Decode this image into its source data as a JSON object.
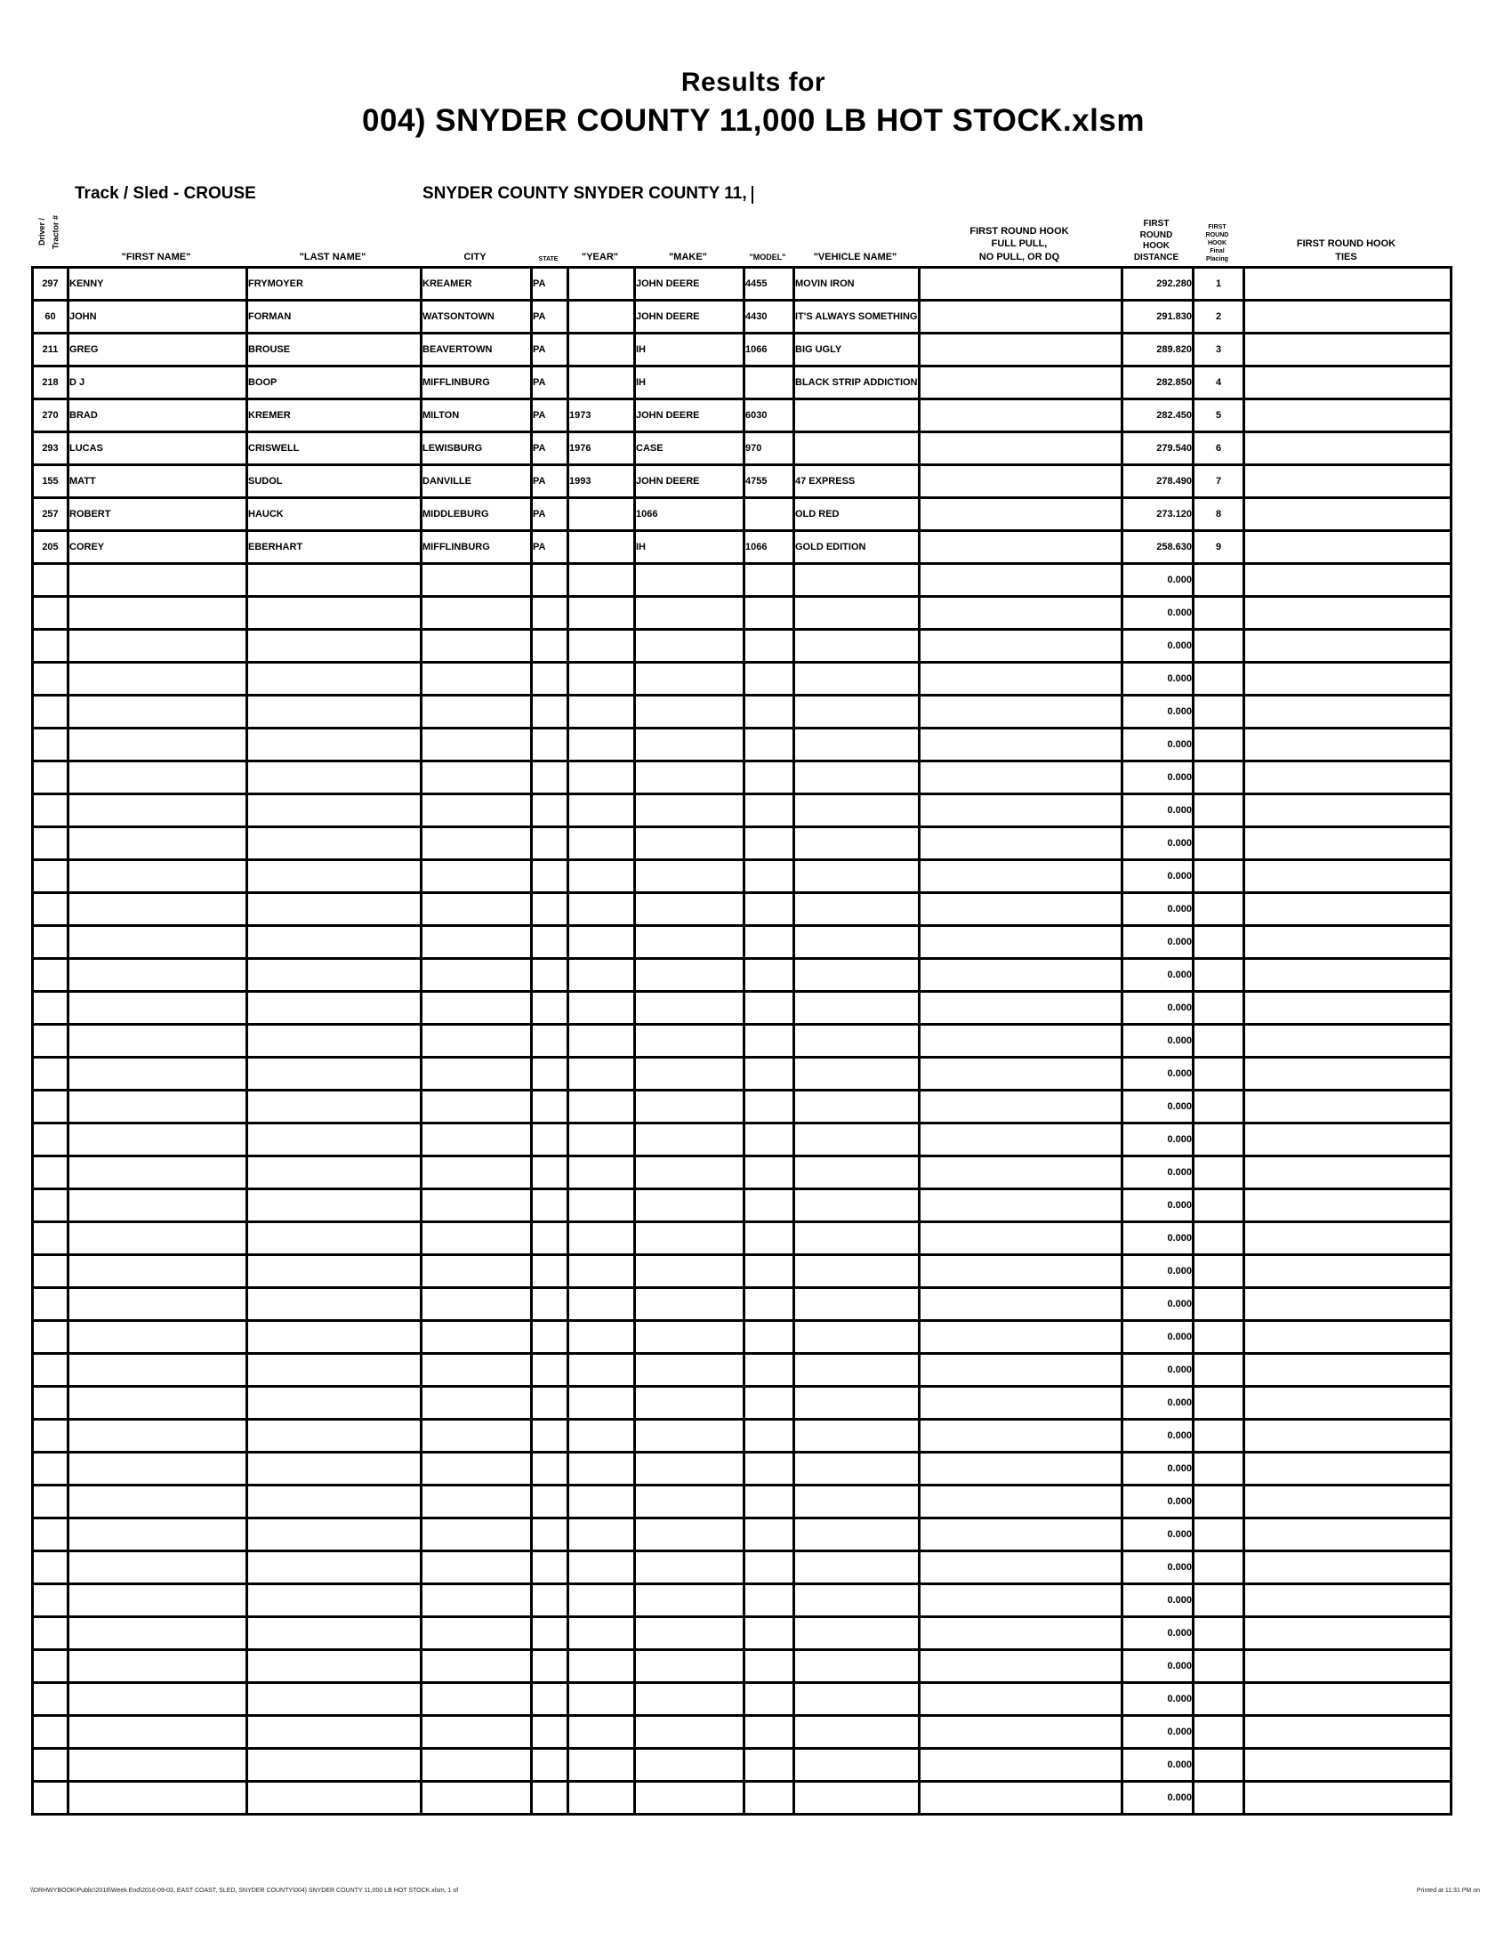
{
  "page": {
    "title_line1": "Results for",
    "title_line2": "004) SNYDER COUNTY 11,000 LB HOT STOCK.xlsm",
    "track_label": "Track / Sled - CROUSE",
    "event_label": "SNYDER COUNTY SNYDER COUNTY 11,",
    "footer_left": "\\\\DRHWYBOOK\\Public\\2016\\Week End\\2016-09-03, EAST COAST, SLED, SNYDER COUNTY\\004) SNYDER COUNTY 11,000 LB HOT STOCK.xlsm, 1 of",
    "footer_right": "Printed at 11:31 PM on"
  },
  "table": {
    "columns": [
      {
        "key": "num",
        "label": "Driver /\nTractor #"
      },
      {
        "key": "first",
        "label": "\"FIRST NAME\""
      },
      {
        "key": "last",
        "label": "\"LAST NAME\""
      },
      {
        "key": "city",
        "label": "CITY"
      },
      {
        "key": "state",
        "label": "STATE"
      },
      {
        "key": "year",
        "label": "\"YEAR\""
      },
      {
        "key": "make",
        "label": "\"MAKE\""
      },
      {
        "key": "model",
        "label": "\"MODEL\""
      },
      {
        "key": "vehicle",
        "label": "\"VEHICLE NAME\""
      },
      {
        "key": "fullpull",
        "label": "FIRST ROUND HOOK\nFULL PULL,\nNO PULL, OR DQ"
      },
      {
        "key": "distance",
        "label": "FIRST\nROUND\nHOOK\nDISTANCE"
      },
      {
        "key": "placing",
        "label": "FIRST\nROUND\nHOOK\nFinal\nPlacing"
      },
      {
        "key": "ties",
        "label": "FIRST ROUND HOOK\nTIES"
      }
    ],
    "column_keys": [
      "num",
      "first",
      "last",
      "city",
      "state",
      "year",
      "make",
      "model",
      "vehicle",
      "fullpull",
      "distance",
      "placing",
      "ties"
    ],
    "rows": [
      {
        "num": "297",
        "first": "KENNY",
        "last": "FRYMOYER",
        "city": "KREAMER",
        "state": "PA",
        "year": "",
        "make": "JOHN DEERE",
        "model": "4455",
        "vehicle": "MOVIN IRON",
        "fullpull": "",
        "distance": "292.280",
        "placing": "1",
        "ties": ""
      },
      {
        "num": "60",
        "first": "JOHN",
        "last": "FORMAN",
        "city": "WATSONTOWN",
        "state": "PA",
        "year": "",
        "make": "JOHN DEERE",
        "model": "4430",
        "vehicle": "IT'S ALWAYS SOMETHING",
        "fullpull": "",
        "distance": "291.830",
        "placing": "2",
        "ties": ""
      },
      {
        "num": "211",
        "first": "GREG",
        "last": "BROUSE",
        "city": "BEAVERTOWN",
        "state": "PA",
        "year": "",
        "make": "IH",
        "model": "1066",
        "vehicle": "BIG UGLY",
        "fullpull": "",
        "distance": "289.820",
        "placing": "3",
        "ties": ""
      },
      {
        "num": "218",
        "first": "D J",
        "last": "BOOP",
        "city": "MIFFLINBURG",
        "state": "PA",
        "year": "",
        "make": "IH",
        "model": "",
        "vehicle": "BLACK STRIP ADDICTION",
        "fullpull": "",
        "distance": "282.850",
        "placing": "4",
        "ties": ""
      },
      {
        "num": "270",
        "first": "BRAD",
        "last": "KREMER",
        "city": "MILTON",
        "state": "PA",
        "year": "1973",
        "make": "JOHN DEERE",
        "model": "6030",
        "vehicle": "",
        "fullpull": "",
        "distance": "282.450",
        "placing": "5",
        "ties": ""
      },
      {
        "num": "293",
        "first": "LUCAS",
        "last": "CRISWELL",
        "city": "LEWISBURG",
        "state": "PA",
        "year": "1976",
        "make": "CASE",
        "model": "970",
        "vehicle": "",
        "fullpull": "",
        "distance": "279.540",
        "placing": "6",
        "ties": ""
      },
      {
        "num": "155",
        "first": "MATT",
        "last": "SUDOL",
        "city": "DANVILLE",
        "state": "PA",
        "year": "1993",
        "make": "JOHN DEERE",
        "model": "4755",
        "vehicle": "47 EXPRESS",
        "fullpull": "",
        "distance": "278.490",
        "placing": "7",
        "ties": ""
      },
      {
        "num": "257",
        "first": "ROBERT",
        "last": "HAUCK",
        "city": "MIDDLEBURG",
        "state": "PA",
        "year": "",
        "make": "1066",
        "model": "",
        "vehicle": "OLD RED",
        "fullpull": "",
        "distance": "273.120",
        "placing": "8",
        "ties": ""
      },
      {
        "num": "205",
        "first": "COREY",
        "last": "EBERHART",
        "city": "MIFFLINBURG",
        "state": "PA",
        "year": "",
        "make": "IH",
        "model": "1066",
        "vehicle": "GOLD EDITION",
        "fullpull": "",
        "distance": "258.630",
        "placing": "9",
        "ties": ""
      }
    ],
    "empty_rows": {
      "count": 38,
      "distance": "0.000"
    }
  }
}
